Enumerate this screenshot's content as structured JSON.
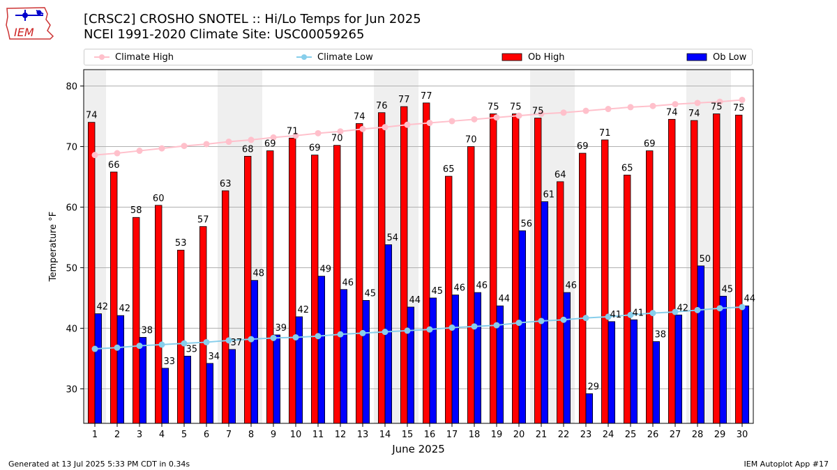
{
  "logo": {
    "text": "IEM"
  },
  "header": {
    "title": "[CRSC2] CROSHO SNOTEL :: Hi/Lo Temps for Jun 2025",
    "subtitle": "NCEI 1991-2020 Climate Site: USC00059265"
  },
  "footer": {
    "left": "Generated at 13 Jul 2025 5:33 PM CDT in 0.34s",
    "right": "IEM Autoplot App #17"
  },
  "chart_data": {
    "type": "bar",
    "xlabel": "June 2025",
    "ylabel": "Temperature °F",
    "ylim": [
      24.3,
      82.7
    ],
    "yticks": [
      30,
      40,
      50,
      60,
      70,
      80
    ],
    "grid": true,
    "legend_placement": "top",
    "categories": [
      "1",
      "2",
      "3",
      "4",
      "5",
      "6",
      "7",
      "8",
      "9",
      "10",
      "11",
      "12",
      "13",
      "14",
      "15",
      "16",
      "17",
      "18",
      "19",
      "20",
      "21",
      "22",
      "23",
      "24",
      "25",
      "26",
      "27",
      "28",
      "29",
      "30"
    ],
    "weekend_days": [
      1,
      7,
      8,
      14,
      15,
      21,
      22,
      28,
      29
    ],
    "series": [
      {
        "name": "Ob High",
        "kind": "bar",
        "color": "#ff0000",
        "values": [
          74.0,
          65.8,
          58.3,
          60.3,
          52.9,
          56.8,
          62.7,
          68.4,
          69.3,
          71.4,
          68.6,
          70.2,
          73.8,
          75.6,
          76.6,
          77.2,
          65.1,
          70.0,
          75.4,
          75.4,
          74.7,
          64.2,
          68.9,
          71.1,
          65.3,
          69.3,
          74.5,
          74.3,
          75.4,
          75.2
        ],
        "labels": [
          "74",
          "66",
          "58",
          "60",
          "53",
          "57",
          "63",
          "68",
          "69",
          "71",
          "69",
          "70",
          "74",
          "76",
          "77",
          "77",
          "65",
          "70",
          "75",
          "75",
          "75",
          "64",
          "69",
          "71",
          "65",
          "69",
          "74",
          "74",
          "75",
          "75"
        ]
      },
      {
        "name": "Ob Low",
        "kind": "bar",
        "color": "#0000ff",
        "values": [
          42.4,
          42.1,
          38.5,
          33.4,
          35.4,
          34.2,
          36.5,
          47.9,
          38.9,
          41.9,
          48.6,
          46.4,
          44.6,
          53.8,
          43.5,
          45.0,
          45.5,
          45.9,
          43.7,
          56.1,
          60.9,
          45.9,
          29.2,
          41.1,
          41.4,
          37.8,
          42.2,
          50.3,
          45.3,
          43.7
        ],
        "labels": [
          "42",
          "42",
          "38",
          "33",
          "35",
          "34",
          "37",
          "48",
          "39",
          "42",
          "49",
          "46",
          "45",
          "54",
          "44",
          "45",
          "46",
          "46",
          "44",
          "56",
          "61",
          "46",
          "29",
          "41",
          "41",
          "38",
          "42",
          "50",
          "45",
          "44"
        ]
      },
      {
        "name": "Climate High",
        "kind": "line",
        "color": "#ffc0cb",
        "values": [
          68.6,
          68.9,
          69.3,
          69.7,
          70.1,
          70.4,
          70.8,
          71.1,
          71.5,
          71.8,
          72.2,
          72.5,
          72.9,
          73.2,
          73.6,
          73.9,
          74.2,
          74.5,
          74.8,
          75.1,
          75.4,
          75.6,
          75.9,
          76.2,
          76.5,
          76.7,
          77.0,
          77.2,
          77.4,
          77.7
        ]
      },
      {
        "name": "Climate Low",
        "kind": "line",
        "color": "#87ceeb",
        "values": [
          36.6,
          36.8,
          37.1,
          37.3,
          37.5,
          37.7,
          38.0,
          38.2,
          38.4,
          38.5,
          38.7,
          39.0,
          39.2,
          39.4,
          39.6,
          39.8,
          40.1,
          40.3,
          40.5,
          40.9,
          41.2,
          41.4,
          41.7,
          41.9,
          42.2,
          42.5,
          42.7,
          43.0,
          43.3,
          43.5
        ]
      }
    ]
  }
}
